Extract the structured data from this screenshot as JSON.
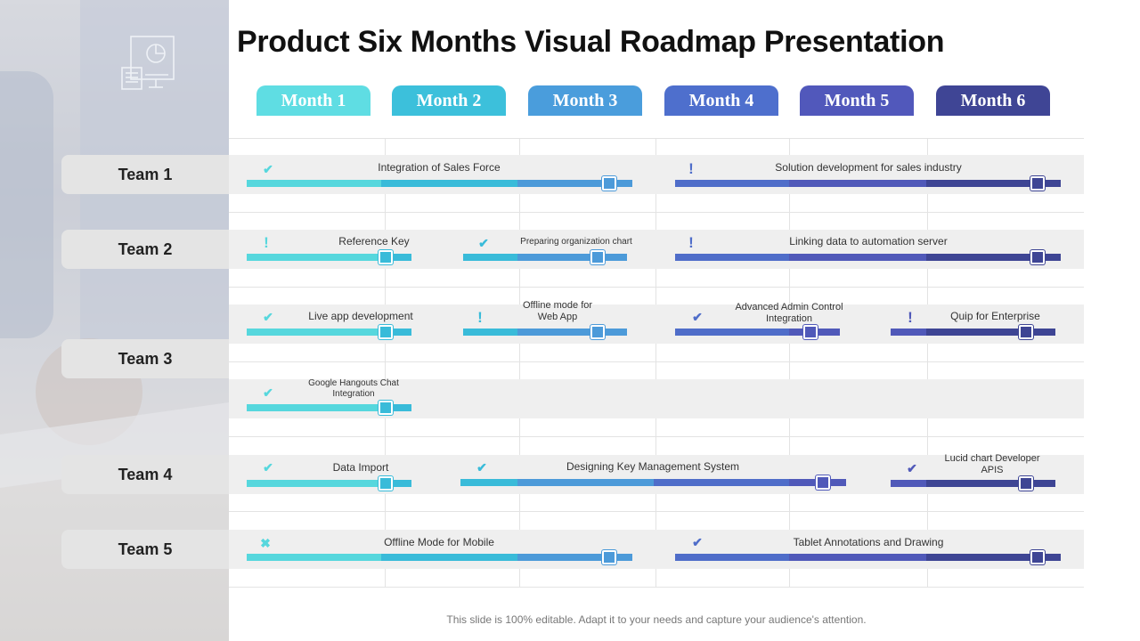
{
  "title": "Product Six Months Visual Roadmap Presentation",
  "footer": "This slide is 100% editable. Adapt it to your needs and capture your audience's attention.",
  "colors": {
    "c1": "#56d7dd",
    "c2": "#39bbd9",
    "c3": "#4c9ad9",
    "c4": "#4f6dc9",
    "c5": "#5059b9",
    "c6": "#3e4594",
    "lane": "#efefef",
    "team_tab": "#e4e4e4"
  },
  "photo_icon": "presentation-board-icon",
  "months": [
    {
      "label": "Month 1",
      "color": "#5fdde3"
    },
    {
      "label": "Month 2",
      "color": "#3cc0db"
    },
    {
      "label": "Month 3",
      "color": "#4a9ddc"
    },
    {
      "label": "Month 4",
      "color": "#4e6fcd"
    },
    {
      "label": "Month 5",
      "color": "#5158bb"
    },
    {
      "label": "Month 6",
      "color": "#3f4595"
    }
  ],
  "teams": [
    {
      "label": "Team 1"
    },
    {
      "label": "Team 2"
    },
    {
      "label": "Team 3"
    },
    {
      "label": "Team 4"
    },
    {
      "label": "Team 5"
    }
  ],
  "tasks": [
    {
      "label": "Integration of Sales Force",
      "status": "check"
    },
    {
      "label": "Solution development  for sales industry",
      "status": "exclamation"
    },
    {
      "label": "Reference  Key",
      "status": "exclamation"
    },
    {
      "label": "Preparing organization chart",
      "status": "check"
    },
    {
      "label": "Linking data to automation server",
      "status": "exclamation"
    },
    {
      "label": "Live  app development",
      "status": "check"
    },
    {
      "label": "Offline mode for\nWeb App",
      "status": "exclamation"
    },
    {
      "label": "Advanced Admin Control\nIntegration",
      "status": "check"
    },
    {
      "label": "Quip for Enterprise",
      "status": "exclamation"
    },
    {
      "label": "Google Hangouts Chat\nIntegration",
      "status": "check"
    },
    {
      "label": "Data Import",
      "status": "check"
    },
    {
      "label": "Designing Key Management  System",
      "status": "check"
    },
    {
      "label": "Lucid chart Developer\nAPIS",
      "status": "check"
    },
    {
      "label": "Offline Mode for Mobile",
      "status": "cross"
    },
    {
      "label": "Tablet Annotations and Drawing",
      "status": "check"
    }
  ]
}
